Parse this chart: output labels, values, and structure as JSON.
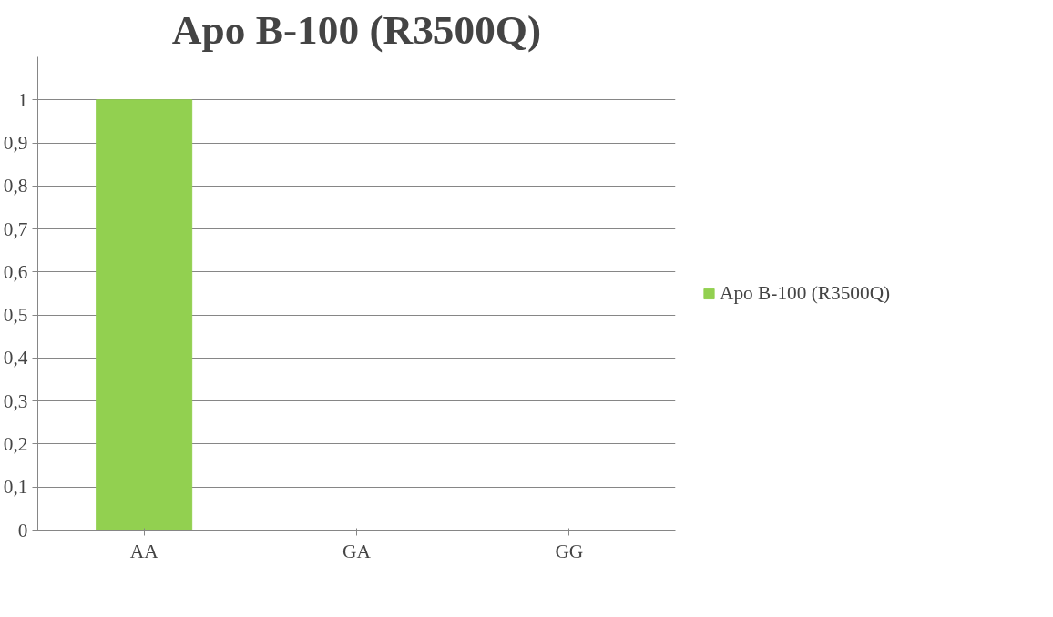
{
  "chart_data": {
    "type": "bar",
    "title": "Apo B-100 (R3500Q)",
    "categories": [
      "AA",
      "GA",
      "GG"
    ],
    "series": [
      {
        "name": "Apo B-100 (R3500Q)",
        "color": "#92d050",
        "values": [
          1,
          0,
          0
        ]
      }
    ],
    "ylim": [
      0,
      1.1
    ],
    "yticks": [
      0,
      {
        "value": 0.1,
        "label": "0,1"
      },
      {
        "value": 0.2,
        "label": "0,2"
      },
      {
        "value": 0.3,
        "label": "0,3"
      },
      {
        "value": 0.4,
        "label": "0,4"
      },
      {
        "value": 0.5,
        "label": "0,5"
      },
      {
        "value": 0.6,
        "label": "0,6"
      },
      {
        "value": 0.7,
        "label": "0,7"
      },
      {
        "value": 0.8,
        "label": "0,8"
      },
      {
        "value": 0.9,
        "label": "0,9"
      },
      1
    ],
    "grid": "y",
    "legend": "right"
  }
}
